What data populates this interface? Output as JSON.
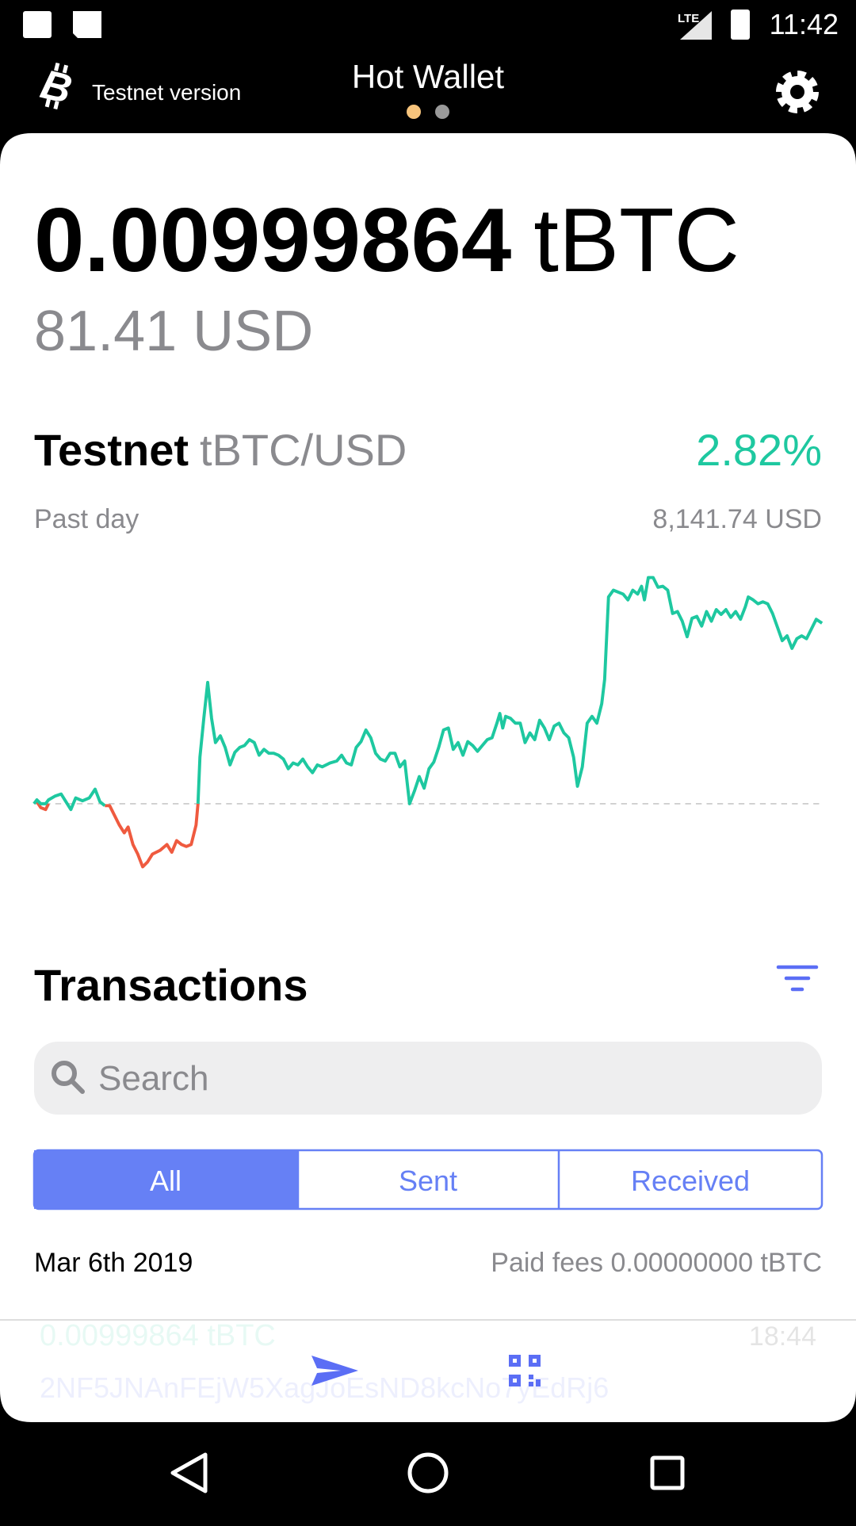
{
  "status_bar": {
    "network": "LTE",
    "time": "11:42"
  },
  "header": {
    "brand": "Testnet version",
    "title": "Hot Wallet"
  },
  "balance": {
    "amount": "0.00999864",
    "unit": "tBTC",
    "fiat": "81.41 USD"
  },
  "market": {
    "network": "Testnet",
    "pair": "tBTC/USD",
    "change": "2.82%",
    "period": "Past day",
    "price": "8,141.74 USD"
  },
  "transactions": {
    "title": "Transactions",
    "search_placeholder": "Search",
    "tabs": [
      "All",
      "Sent",
      "Received"
    ],
    "groups": [
      {
        "date": "Mar 6th 2019",
        "fees": "Paid fees 0.00000000 tBTC",
        "items": [
          {
            "amount": "0.00999864 tBTC",
            "time": "18:44",
            "address": "2NF5JNAnFEjW5XagJoEsND8kcNo7yEdRj6"
          }
        ]
      }
    ]
  }
}
